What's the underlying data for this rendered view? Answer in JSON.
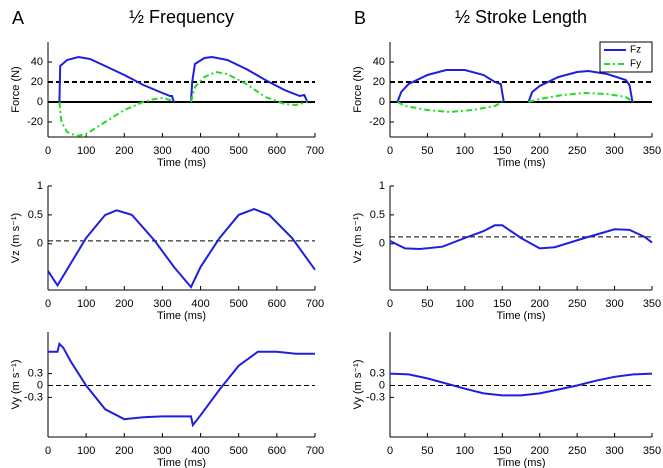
{
  "chart_data": [
    {
      "type": "line",
      "panel_label": "A",
      "title": "½ Frequency",
      "xlabel": "Time (ms)",
      "ylabel": "Force (N)",
      "xlim": [
        0,
        700
      ],
      "xticks": [
        0,
        100,
        200,
        300,
        400,
        500,
        600,
        700
      ],
      "ylim": [
        -35,
        60
      ],
      "yticks": [
        -20,
        0,
        20,
        40
      ],
      "hlines": [
        {
          "value": 20,
          "style": "dashed"
        },
        {
          "value": 0,
          "style": "solid"
        }
      ],
      "series": [
        {
          "name": "Fz",
          "color": "#1f1fdd",
          "style": "solid",
          "x": [
            30,
            32,
            50,
            80,
            110,
            150,
            200,
            250,
            300,
            320,
            325,
            330,
            350,
            375,
            378,
            385,
            410,
            430,
            470,
            520,
            570,
            620,
            660,
            672,
            680
          ],
          "values": [
            0,
            36,
            42,
            45,
            43,
            36,
            27,
            17,
            9,
            6,
            6,
            0,
            null,
            0,
            20,
            38,
            44,
            45,
            42,
            33,
            22,
            12,
            6,
            7,
            0
          ]
        },
        {
          "name": "Fy",
          "color": "#22dd22",
          "style": "dashdot",
          "x": [
            30,
            35,
            50,
            75,
            100,
            150,
            200,
            250,
            280,
            300,
            320,
            330,
            350,
            375,
            385,
            410,
            440,
            470,
            520,
            570,
            620,
            650,
            680
          ],
          "values": [
            0,
            -20,
            -30,
            -34,
            -32,
            -20,
            -8,
            0,
            3,
            4,
            2,
            0,
            null,
            0,
            15,
            25,
            30,
            28,
            18,
            5,
            -2,
            -3,
            0
          ]
        }
      ]
    },
    {
      "type": "line",
      "panel_label": "B",
      "title": "½ Stroke Length",
      "xlabel": "Time (ms)",
      "ylabel": "Force (N)",
      "xlim": [
        0,
        350
      ],
      "xticks": [
        0,
        50,
        100,
        150,
        200,
        250,
        300,
        350
      ],
      "ylim": [
        -35,
        60
      ],
      "yticks": [
        -20,
        0,
        20,
        40
      ],
      "hlines": [
        {
          "value": 20,
          "style": "dashed"
        },
        {
          "value": 0,
          "style": "solid"
        }
      ],
      "legend": "upper right",
      "series": [
        {
          "name": "Fz",
          "color": "#1f1fdd",
          "style": "solid",
          "x": [
            10,
            15,
            25,
            50,
            75,
            100,
            125,
            140,
            148,
            152,
            170,
            185,
            190,
            200,
            225,
            250,
            265,
            290,
            315,
            320,
            324
          ],
          "values": [
            0,
            10,
            18,
            27,
            32,
            32,
            27,
            20,
            18,
            0,
            null,
            0,
            10,
            16,
            25,
            30,
            31,
            28,
            22,
            17,
            0
          ]
        },
        {
          "name": "Fy",
          "color": "#22dd22",
          "style": "dashdot",
          "x": [
            10,
            20,
            50,
            80,
            110,
            140,
            150,
            170,
            185,
            200,
            230,
            260,
            290,
            315,
            325
          ],
          "values": [
            0,
            -4,
            -8,
            -10,
            -8,
            -4,
            0,
            null,
            0,
            3,
            7,
            9,
            8,
            5,
            0
          ]
        }
      ]
    },
    {
      "type": "line",
      "xlabel": "Time (ms)",
      "ylabel": "Vz (m s⁻¹)",
      "xlim": [
        0,
        700
      ],
      "xticks": [
        0,
        100,
        200,
        300,
        400,
        500,
        600,
        700
      ],
      "ylim": [
        -0.8,
        1
      ],
      "yticks": [
        0,
        0.5,
        1
      ],
      "hlines": [
        {
          "value": 0.05,
          "style": "dashed"
        }
      ],
      "series": [
        {
          "color": "#1f1fdd",
          "style": "solid",
          "x": [
            0,
            25,
            100,
            150,
            180,
            220,
            280,
            330,
            375,
            400,
            450,
            500,
            540,
            580,
            640,
            700
          ],
          "values": [
            -0.47,
            -0.72,
            0.1,
            0.5,
            0.58,
            0.5,
            0.05,
            -0.4,
            -0.75,
            -0.4,
            0.1,
            0.5,
            0.6,
            0.5,
            0.1,
            -0.45
          ]
        }
      ]
    },
    {
      "type": "line",
      "xlabel": "Time (ms)",
      "ylabel": "Vz (m s⁻¹)",
      "xlim": [
        0,
        350
      ],
      "xticks": [
        0,
        50,
        100,
        150,
        200,
        250,
        300,
        350
      ],
      "ylim": [
        -0.8,
        1
      ],
      "yticks": [
        0,
        0.5,
        1
      ],
      "hlines": [
        {
          "value": 0.12,
          "style": "dashed"
        }
      ],
      "series": [
        {
          "color": "#1f1fdd",
          "style": "solid",
          "x": [
            0,
            20,
            40,
            70,
            100,
            125,
            140,
            150,
            175,
            200,
            220,
            260,
            300,
            320,
            340,
            350
          ],
          "values": [
            0.05,
            -0.08,
            -0.09,
            -0.05,
            0.1,
            0.22,
            0.32,
            0.32,
            0.1,
            -0.08,
            -0.06,
            0.1,
            0.25,
            0.24,
            0.12,
            0.02
          ]
        }
      ]
    },
    {
      "type": "line",
      "xlabel": "Time (ms)",
      "ylabel": "Vy (m s⁻¹)",
      "xlim": [
        0,
        700
      ],
      "xticks": [
        0,
        100,
        200,
        300,
        400,
        500,
        600,
        700
      ],
      "ylim": [
        -1.3,
        1.35
      ],
      "yticks": [
        -0.3,
        0,
        0.3
      ],
      "hlines": [
        {
          "value": 0,
          "style": "dashed"
        }
      ],
      "series": [
        {
          "color": "#1f1fdd",
          "style": "solid",
          "x": [
            0,
            25,
            30,
            40,
            60,
            100,
            150,
            200,
            250,
            300,
            375,
            380,
            400,
            450,
            500,
            550,
            600,
            650,
            700
          ],
          "values": [
            0.85,
            0.85,
            1.05,
            0.95,
            0.6,
            0,
            -0.6,
            -0.85,
            -0.8,
            -0.78,
            -0.78,
            -1.0,
            -0.75,
            -0.1,
            0.5,
            0.85,
            0.85,
            0.8,
            0.8
          ]
        }
      ]
    },
    {
      "type": "line",
      "xlabel": "Time (ms)",
      "ylabel": "Vy (m s⁻¹)",
      "xlim": [
        0,
        350
      ],
      "xticks": [
        0,
        50,
        100,
        150,
        200,
        250,
        300,
        350
      ],
      "ylim": [
        -1.3,
        1.35
      ],
      "yticks": [
        -0.3,
        0,
        0.3
      ],
      "hlines": [
        {
          "value": 0,
          "style": "dashed"
        }
      ],
      "series": [
        {
          "color": "#1f1fdd",
          "style": "solid",
          "x": [
            0,
            25,
            50,
            75,
            100,
            125,
            150,
            175,
            200,
            225,
            250,
            275,
            300,
            325,
            350
          ],
          "values": [
            0.3,
            0.28,
            0.18,
            0.05,
            -0.08,
            -0.2,
            -0.25,
            -0.25,
            -0.2,
            -0.1,
            0,
            0.12,
            0.22,
            0.28,
            0.3
          ]
        }
      ]
    }
  ]
}
